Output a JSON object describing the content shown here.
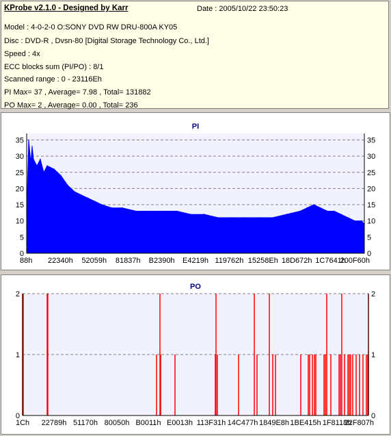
{
  "info": {
    "title": "KProbe v2.1.0 - Designed by Karr",
    "date": "Date : 2005/10/22 23:50:23",
    "model": "Model : 4-0-2-0 O:SONY    DVD RW DRU-800A  KY05",
    "disc": "Disc : DVD-R , Dvsn-80 [Digital Storage Technology Co., Ltd.]",
    "speed": "Speed : 4x",
    "ecc": "ECC blocks sum (PI/PO) : 8/1",
    "range": "Scanned range : 0 - 23116Eh",
    "pi_stats": "PI Max= 37 , Average= 7.98 , Total= 131882",
    "po_stats": "PO Max= 2 , Average= 0.00 , Total= 236"
  },
  "chart_data": [
    {
      "type": "area",
      "title": "PI",
      "ylim": [
        0,
        37
      ],
      "yticks": [
        "0",
        "5",
        "10",
        "15",
        "20",
        "25",
        "30",
        "35"
      ],
      "xticks": [
        "88h",
        "22340h",
        "52059h",
        "81837h",
        "B2390h",
        "E4219h",
        "119762h",
        "15258Eh",
        "18D672h",
        "1C7641h",
        "200F60h"
      ],
      "grid": true,
      "color": "#0000ff",
      "x": [
        0,
        3,
        6,
        8,
        10,
        15,
        20,
        25,
        30,
        40,
        50,
        60,
        70,
        80,
        90,
        100,
        110,
        125,
        140,
        160,
        180,
        200,
        220,
        240,
        260,
        280,
        300,
        320,
        340,
        360,
        380,
        400,
        410,
        420,
        430,
        440,
        450,
        460,
        470,
        480,
        490,
        494
      ],
      "values": [
        12,
        35,
        28,
        33,
        29,
        27,
        29,
        25,
        27,
        26,
        24,
        21,
        19,
        18,
        17,
        16,
        15,
        14,
        14,
        13,
        13,
        13,
        13,
        12,
        12,
        11,
        11,
        11,
        11,
        11,
        12,
        13,
        14,
        15,
        14,
        13,
        13,
        12,
        11,
        10,
        10,
        9
      ]
    },
    {
      "type": "bar",
      "title": "PO",
      "ylim": [
        0,
        2
      ],
      "yticks": [
        "0",
        "1",
        "2"
      ],
      "xticks": [
        "1Ch",
        "22789h",
        "51170h",
        "80050h",
        "B0011h",
        "E0013h",
        "113F31h",
        "14C477h",
        "1849E8h",
        "1BE415h",
        "1F8118h",
        "22F807h"
      ],
      "grid": true,
      "color": "#ff0000",
      "x": [
        0,
        1,
        36,
        37,
        196,
        201,
        202,
        223,
        282,
        283,
        285,
        316,
        339,
        343,
        361,
        366,
        370,
        407,
        418,
        420,
        424,
        427,
        429,
        441,
        443,
        445,
        451,
        463,
        465,
        467,
        471,
        476,
        478,
        480,
        483,
        488,
        493,
        498,
        503,
        505,
        506
      ],
      "values": [
        2,
        2,
        2,
        2,
        1,
        2,
        1,
        1,
        1,
        2,
        1,
        1,
        2,
        1,
        2,
        1,
        1,
        1,
        1,
        1,
        1,
        1,
        1,
        1,
        1,
        2,
        1,
        1,
        1,
        2,
        1,
        1,
        1,
        1,
        1,
        1,
        1,
        1,
        1,
        1,
        2
      ]
    }
  ]
}
